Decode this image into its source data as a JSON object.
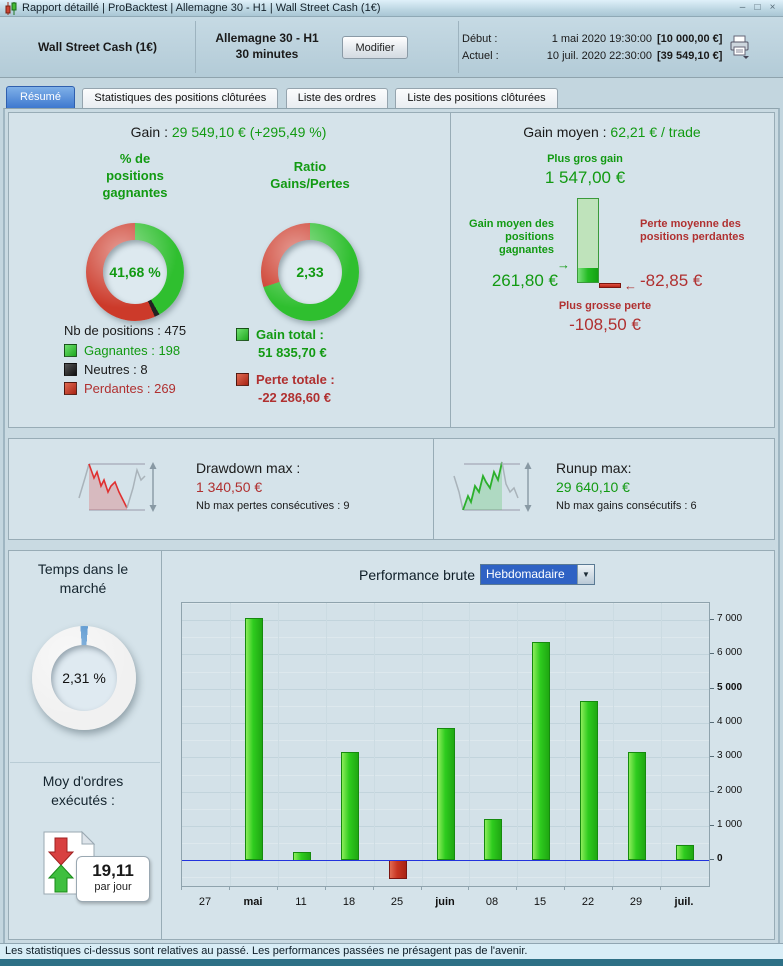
{
  "window": {
    "title": "Rapport détaillé | ProBacktest | Allemagne 30 - H1 | Wall Street Cash (1€)",
    "controls": {
      "minimize": "–",
      "maximize": "□",
      "close": "×"
    }
  },
  "header": {
    "system_name": "Wall Street Cash (1€)",
    "market": "Allemagne 30 - H1",
    "timeframe": "30 minutes",
    "modify_button": "Modifier",
    "start_label": "Début :",
    "start_date": "1 mai 2020 19:30:00",
    "start_amount": "[10 000,00 €]",
    "current_label": "Actuel :",
    "current_date": "10 juil. 2020 22:30:00",
    "current_amount": "[39 549,10 €]"
  },
  "tabs": [
    {
      "label": "Résumé",
      "active": true
    },
    {
      "label": "Statistiques des positions clôturées",
      "active": false
    },
    {
      "label": "Liste des ordres",
      "active": false
    },
    {
      "label": "Liste des positions clôturées",
      "active": false
    }
  ],
  "summary": {
    "gain_label": "Gain :",
    "gain_value": "29 549,10 € (+295,49 %)",
    "winrate_title": "% de positions gagnantes",
    "winrate_value": "41,68 %",
    "ratio_title": "Ratio Gains/Pertes",
    "ratio_value": "2,33",
    "nb_positions": "Nb de positions : 475",
    "legend_gagnantes": "Gagnantes : 198",
    "legend_neutres": "Neutres : 8",
    "legend_perdantes": "Perdantes : 269",
    "gain_total_label": "Gain total :",
    "gain_total_value": "51 835,70 €",
    "perte_totale_label": "Perte totale :",
    "perte_totale_value": "-22 286,60 €"
  },
  "gain_moyen": {
    "label": "Gain moyen :",
    "value": "62,21 € / trade",
    "plus_gros_gain_label": "Plus gros gain",
    "plus_gros_gain_value": "1 547,00 €",
    "gain_moyen_pos_label": "Gain moyen des positions gagnantes",
    "gain_moyen_pos_value": "261,80 €",
    "perte_moyenne_label": "Perte moyenne des positions perdantes",
    "perte_moyenne_value": "-82,85 €",
    "plus_grosse_perte_label": "Plus grosse perte",
    "plus_grosse_perte_value": "-108,50 €"
  },
  "drawdown": {
    "label": "Drawdown max :",
    "value": "1 340,50 €",
    "sub": "Nb max pertes consécutives : 9"
  },
  "runup": {
    "label": "Runup max:",
    "value": "29 640,10 €",
    "sub": "Nb max gains consécutifs : 6"
  },
  "market_time": {
    "title": "Temps dans le marché",
    "value": "2,31 %"
  },
  "orders": {
    "title": "Moy d'ordres exécutés :",
    "value": "19,11",
    "unit": "par jour"
  },
  "performance": {
    "label": "Performance brute",
    "period": "Hebdomadaire"
  },
  "status_bar": "Les statistiques ci-dessus sont relatives au passé. Les performances passées ne présagent pas de l'avenir.",
  "colors": {
    "green_text": "#129a12",
    "red_text": "#b03030",
    "bar_green": "#2ecc1e",
    "bar_red": "#c83420",
    "zero_line": "#2233dd",
    "gauge_blue": "#3d85c8",
    "tab_active": "#3e78cf"
  },
  "icons": [
    "candlestick-chart-icon",
    "printer-icon",
    "chevron-down-icon",
    "drawdown-sparkline-icon",
    "runup-sparkline-icon",
    "orders-page-icon",
    "minimize-icon",
    "maximize-icon",
    "close-icon"
  ],
  "chart_data": [
    {
      "id": "winrate_donut",
      "type": "pie",
      "title": "% de positions gagnantes",
      "center_label": "41,68 %",
      "total": 475,
      "segments": [
        {
          "label": "Gagnantes",
          "value": 198,
          "color": "#2fbf2f"
        },
        {
          "label": "Neutres",
          "value": 8,
          "color": "#222222"
        },
        {
          "label": "Perdantes",
          "value": 269,
          "color": "#cc3a2a"
        }
      ]
    },
    {
      "id": "ratio_donut",
      "type": "pie",
      "title": "Ratio Gains/Pertes",
      "center_label": "2,33",
      "total": 100,
      "segments": [
        {
          "label": "Gains",
          "value": 70,
          "color": "#2fbf2f"
        },
        {
          "label": "Pertes",
          "value": 30,
          "color": "#cc3a2a"
        }
      ]
    },
    {
      "id": "market_time_gauge",
      "type": "pie",
      "title": "Temps dans le marché",
      "center_label": "2,31 %",
      "total": 100,
      "segments": [
        {
          "label": "Temps dans le marché",
          "value": 2.31,
          "color": "#3d85c8"
        },
        {
          "label": "Hors marché",
          "value": 97.69,
          "color": "#f1f1f1"
        }
      ]
    },
    {
      "id": "avg_gain_bar",
      "type": "bar",
      "values": {
        "plus_gros_gain": 1547.0,
        "gain_moyen_gagnantes": 261.8,
        "perte_moyenne_perdantes": -82.85,
        "plus_grosse_perte": -108.5
      }
    },
    {
      "id": "performance_brute",
      "type": "bar",
      "title": "Performance brute",
      "period": "Hebdomadaire",
      "categories": [
        "27",
        "mai",
        "11",
        "18",
        "25",
        "juin",
        "08",
        "15",
        "22",
        "29",
        "juil."
      ],
      "bold_categories": [
        "mai",
        "juin",
        "juil."
      ],
      "values": [
        0,
        7050,
        250,
        3150,
        -550,
        3850,
        1200,
        6350,
        4650,
        3150,
        450
      ],
      "ylim": [
        -750,
        7500
      ],
      "ytick_interval": 1000,
      "yticks_bold": [
        0,
        5000
      ],
      "ylabel": "",
      "xlabel": "",
      "grid": true,
      "legend": "none"
    }
  ]
}
